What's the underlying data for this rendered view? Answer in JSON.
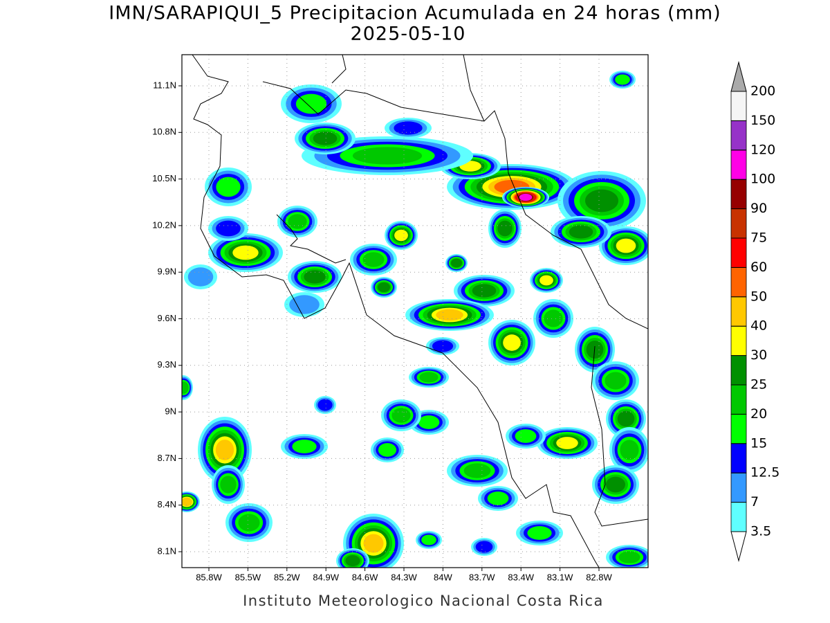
{
  "title": "IMN/SARAPIQUI_5 Precipitacion Acumulada en 24 horas (mm)",
  "subtitle": "2025-05-10",
  "map": {
    "lat_ticks": [
      {
        "value": 11.1,
        "label": "11.1N"
      },
      {
        "value": 10.8,
        "label": "10.8N"
      },
      {
        "value": 10.5,
        "label": "10.5N"
      },
      {
        "value": 10.2,
        "label": "10.2N"
      },
      {
        "value": 9.9,
        "label": "9.9N"
      },
      {
        "value": 9.6,
        "label": "9.6N"
      },
      {
        "value": 9.3,
        "label": "9.3N"
      },
      {
        "value": 9,
        "label": "9N"
      },
      {
        "value": 8.7,
        "label": "8.7N"
      },
      {
        "value": 8.4,
        "label": "8.4N"
      },
      {
        "value": 8.1,
        "label": "8.1N"
      }
    ],
    "lon_ticks": [
      {
        "value": -85.8,
        "label": "85.8W"
      },
      {
        "value": -85.5,
        "label": "85.5W"
      },
      {
        "value": -85.2,
        "label": "85.2W"
      },
      {
        "value": -84.9,
        "label": "84.9W"
      },
      {
        "value": -84.6,
        "label": "84.6W"
      },
      {
        "value": -84.3,
        "label": "84.3W"
      },
      {
        "value": -84,
        "label": "84W"
      },
      {
        "value": -83.7,
        "label": "83.7W"
      },
      {
        "value": -83.4,
        "label": "83.4W"
      },
      {
        "value": -83.1,
        "label": "83.1W"
      },
      {
        "value": -82.8,
        "label": "82.8W"
      }
    ]
  },
  "colorbar": {
    "levels": [
      3.5,
      7,
      12.5,
      15,
      20,
      25,
      30,
      40,
      50,
      60,
      75,
      90,
      100,
      120,
      150,
      200
    ],
    "colors": [
      "#5fffff",
      "#3399ff",
      "#0000ff",
      "#00ff00",
      "#00c800",
      "#009000",
      "#ffff00",
      "#ffc800",
      "#ff6400",
      "#ff0000",
      "#c83200",
      "#960000",
      "#ff00e6",
      "#9632c8",
      "#f5f5f5"
    ],
    "under_color": "#ffffff",
    "over_color": "#aaaaaa"
  },
  "footer": "Instituto Meteorologico Nacional Costa Rica"
}
